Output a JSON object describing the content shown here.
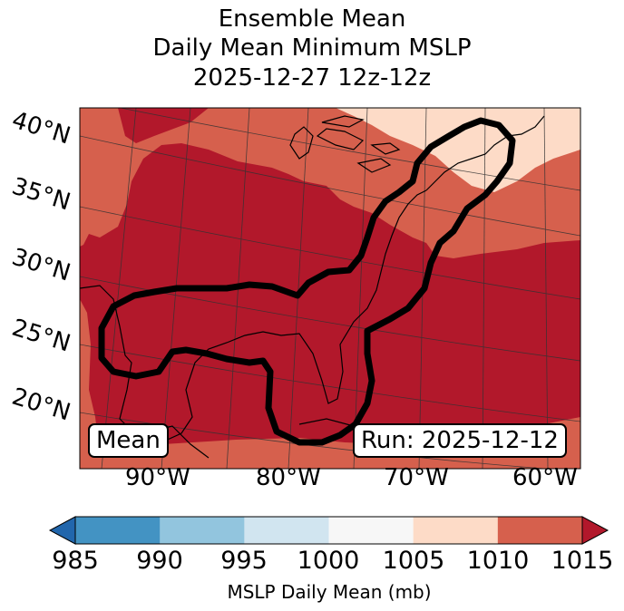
{
  "title": {
    "line1": "Ensemble Mean",
    "line2": "Daily Mean Minimum MSLP",
    "line3": "2025-12-27 12z-12z"
  },
  "map": {
    "lat_labels": [
      "40°N",
      "35°N",
      "30°N",
      "25°N",
      "20°N"
    ],
    "lon_labels": [
      "90°W",
      "80°W",
      "70°W",
      "60°W"
    ],
    "left_box": "Mean",
    "right_box": "Run: 2025-12-12",
    "fill_colors": {
      "dark_red": "#b2182b",
      "mid_red": "#d6604d",
      "light_pink": "#fddbc7"
    },
    "contour_color": "#000000"
  },
  "colorbar": {
    "ticks": [
      "985",
      "990",
      "995",
      "1000",
      "1005",
      "1010",
      "1015"
    ],
    "colors": [
      "#2166ac",
      "#4393c3",
      "#92c5de",
      "#d1e5f0",
      "#f7f7f7",
      "#fddbc7",
      "#d6604d",
      "#b2182b"
    ],
    "label": "MSLP Daily Mean (mb)"
  }
}
